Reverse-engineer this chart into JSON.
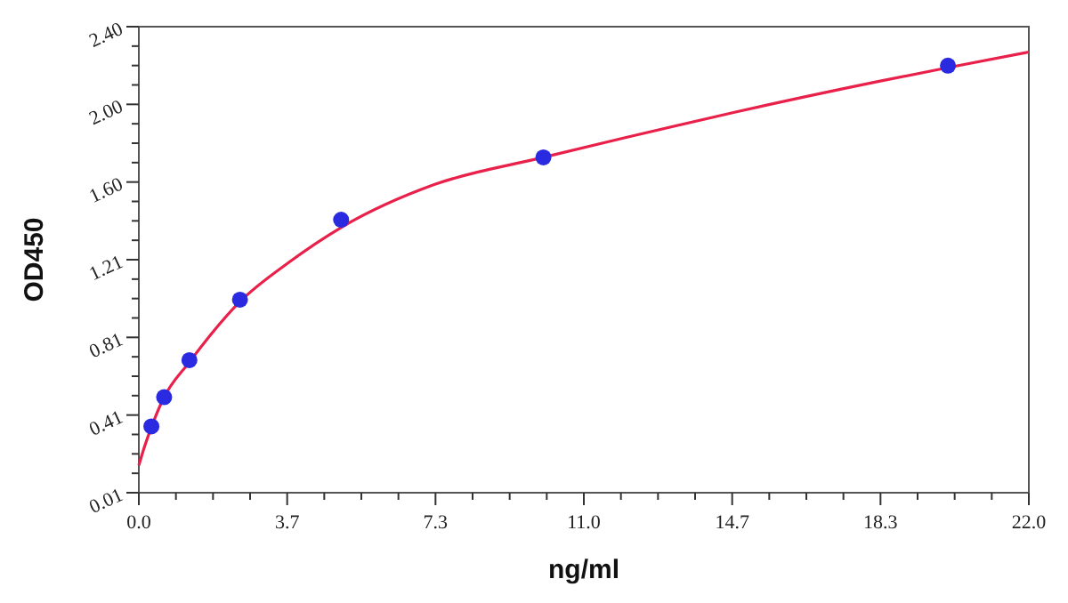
{
  "chart_data": {
    "type": "scatter",
    "xlabel": "ng/ml",
    "ylabel": "OD450",
    "xlim": [
      0,
      22
    ],
    "ylim": [
      0.01,
      2.4
    ],
    "xticks": [
      {
        "value": 0,
        "label": "0.0"
      },
      {
        "value": 0.9167,
        "label": null
      },
      {
        "value": 1.8333,
        "label": null
      },
      {
        "value": 2.75,
        "label": null
      },
      {
        "value": 3.6667,
        "label": "3.7"
      },
      {
        "value": 4.5833,
        "label": null
      },
      {
        "value": 5.5,
        "label": null
      },
      {
        "value": 6.4167,
        "label": null
      },
      {
        "value": 7.3333,
        "label": "7.3"
      },
      {
        "value": 8.25,
        "label": null
      },
      {
        "value": 9.1667,
        "label": null
      },
      {
        "value": 10.0833,
        "label": null
      },
      {
        "value": 11,
        "label": "11.0"
      },
      {
        "value": 11.9167,
        "label": null
      },
      {
        "value": 12.8333,
        "label": null
      },
      {
        "value": 13.75,
        "label": null
      },
      {
        "value": 14.6667,
        "label": "14.7"
      },
      {
        "value": 15.5833,
        "label": null
      },
      {
        "value": 16.5,
        "label": null
      },
      {
        "value": 17.4167,
        "label": null
      },
      {
        "value": 18.3333,
        "label": "18.3"
      },
      {
        "value": 19.25,
        "label": null
      },
      {
        "value": 20.1667,
        "label": null
      },
      {
        "value": 21.0833,
        "label": null
      },
      {
        "value": 22,
        "label": "22.0"
      }
    ],
    "yticks": [
      0.01,
      {
        "value": 0.1096,
        "label": null
      },
      {
        "value": 0.2092,
        "label": null
      },
      {
        "value": 0.3088,
        "label": null
      },
      {
        "value": 0.4083,
        "label": "0.41"
      },
      {
        "value": 0.5079,
        "label": null
      },
      {
        "value": 0.6075,
        "label": null
      },
      {
        "value": 0.7071,
        "label": null
      },
      {
        "value": 0.8067,
        "label": "0.81"
      },
      {
        "value": 0.9063,
        "label": null
      },
      {
        "value": 1.0058,
        "label": null
      },
      {
        "value": 1.1054,
        "label": null
      },
      {
        "value": 1.205,
        "label": "1.21"
      },
      {
        "value": 1.3046,
        "label": null
      },
      {
        "value": 1.4042,
        "label": null
      },
      {
        "value": 1.5038,
        "label": null
      },
      {
        "value": 1.6033,
        "label": "1.60"
      },
      {
        "value": 1.7029,
        "label": null
      },
      {
        "value": 1.8025,
        "label": null
      },
      {
        "value": 1.9021,
        "label": null
      },
      {
        "value": 2.0017,
        "label": "2.00"
      },
      {
        "value": 2.1013,
        "label": null
      },
      {
        "value": 2.2008,
        "label": null
      },
      {
        "value": 2.3004,
        "label": null
      },
      {
        "value": 2.4,
        "label": "2.40"
      }
    ],
    "grid": false,
    "series": [
      {
        "type": "line",
        "color": "#e8204a",
        "marker": "none",
        "line_style": "solid",
        "x": [
          0,
          0.1,
          0.3,
          0.6,
          1.25,
          2.5,
          3.7,
          5,
          7.3,
          10,
          12,
          14.7,
          18.3,
          20,
          22
        ],
        "values": [
          0.15,
          0.22,
          0.34,
          0.49,
          0.68,
          0.99,
          1.19,
          1.37,
          1.59,
          1.73,
          1.83,
          1.96,
          2.12,
          2.19,
          2.27
        ]
      },
      {
        "color": "#2a2ae0",
        "marker": "circle",
        "x": [
          0.31,
          0.625,
          1.25,
          2.5,
          5,
          10,
          20
        ],
        "values": [
          0.35,
          0.5,
          0.69,
          1.0,
          1.41,
          1.73,
          2.2
        ]
      }
    ]
  }
}
